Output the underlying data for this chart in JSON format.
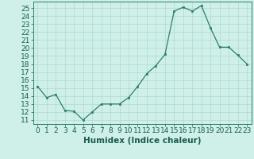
{
  "x": [
    0,
    1,
    2,
    3,
    4,
    5,
    6,
    7,
    8,
    9,
    10,
    11,
    12,
    13,
    14,
    15,
    16,
    17,
    18,
    19,
    20,
    21,
    22,
    23
  ],
  "y": [
    15.2,
    13.8,
    14.2,
    12.2,
    12.1,
    11.0,
    12.0,
    13.0,
    13.0,
    13.0,
    13.8,
    15.2,
    16.8,
    17.8,
    19.2,
    24.6,
    25.1,
    24.6,
    25.3,
    22.5,
    20.1,
    20.1,
    19.1,
    18.0
  ],
  "line_color": "#2e7d6e",
  "marker_color": "#2e7d6e",
  "bg_color": "#cef0e8",
  "grid_color": "#b0d8cf",
  "xlabel": "Humidex (Indice chaleur)",
  "ylim": [
    10.5,
    25.8
  ],
  "xlim": [
    -0.5,
    23.5
  ],
  "yticks": [
    11,
    12,
    13,
    14,
    15,
    16,
    17,
    18,
    19,
    20,
    21,
    22,
    23,
    24,
    25
  ],
  "xticks": [
    0,
    1,
    2,
    3,
    4,
    5,
    6,
    7,
    8,
    9,
    10,
    11,
    12,
    13,
    14,
    15,
    16,
    17,
    18,
    19,
    20,
    21,
    22,
    23
  ],
  "xlabel_fontsize": 7.5,
  "tick_fontsize": 6.5
}
